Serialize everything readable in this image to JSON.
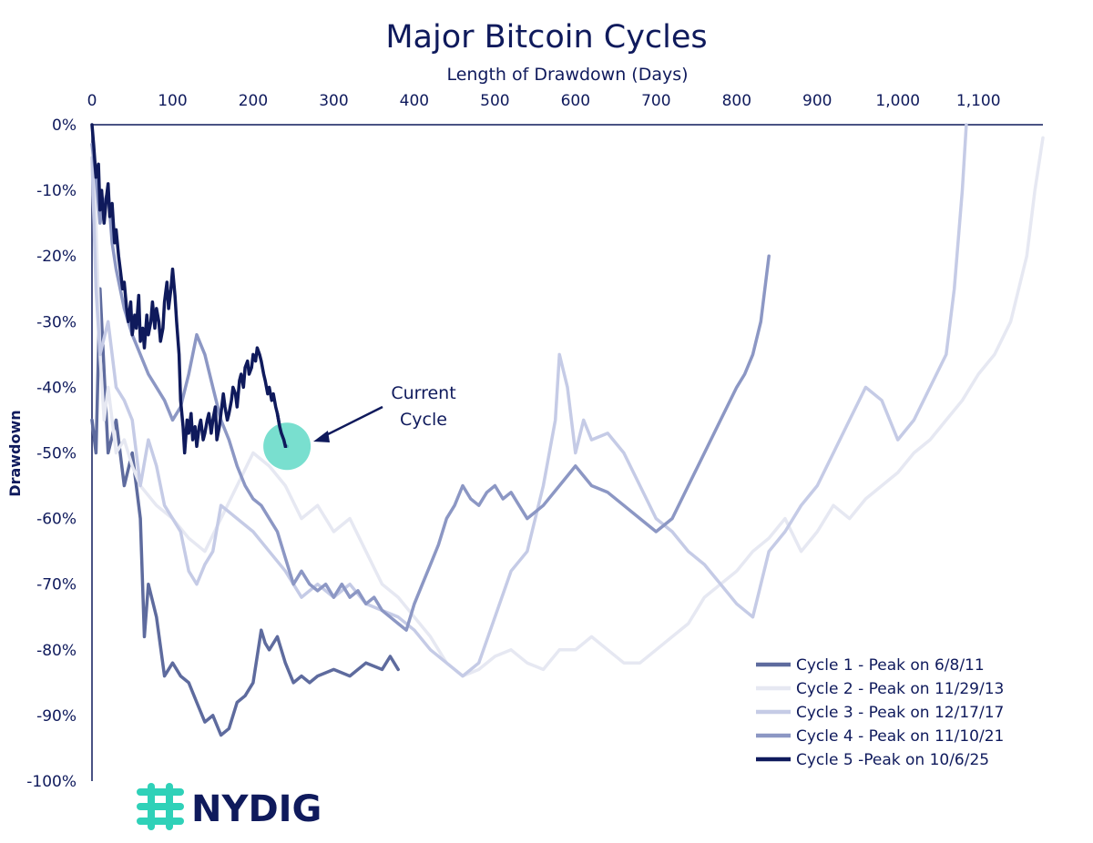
{
  "chart_data": {
    "type": "line",
    "title": "Major Bitcoin Cycles",
    "xlabel": "Length of Drawdown (Days)",
    "ylabel": "Drawdown",
    "x_axis_position": "top",
    "xlim": [
      0,
      1180
    ],
    "ylim": [
      -100,
      0
    ],
    "x_ticks": [
      "0",
      "100",
      "200",
      "300",
      "400",
      "500",
      "600",
      "700",
      "800",
      "900",
      "1,000",
      "1,100"
    ],
    "y_ticks": [
      "0%",
      "-10%",
      "-20%",
      "-30%",
      "-40%",
      "-50%",
      "-60%",
      "-70%",
      "-80%",
      "-90%",
      "-100%"
    ],
    "grid": false,
    "legend_position": "bottom-right",
    "series": [
      {
        "name": "Cycle 1 - Peak on 6/8/11",
        "color": "#5e6b9e",
        "x": [
          0,
          5,
          10,
          20,
          30,
          40,
          50,
          60,
          65,
          70,
          80,
          90,
          100,
          110,
          120,
          130,
          140,
          150,
          160,
          170,
          180,
          190,
          200,
          210,
          215,
          220,
          230,
          240,
          250,
          260,
          270,
          280,
          300,
          320,
          340,
          360,
          370,
          380
        ],
        "y": [
          -45,
          -50,
          -25,
          -50,
          -45,
          -55,
          -50,
          -60,
          -78,
          -70,
          -75,
          -84,
          -82,
          -84,
          -85,
          -88,
          -91,
          -90,
          -93,
          -92,
          -88,
          -87,
          -85,
          -77,
          -79,
          -80,
          -78,
          -82,
          -85,
          -84,
          -85,
          -84,
          -83,
          -84,
          -82,
          -83,
          -81,
          -83
        ]
      },
      {
        "name": "Cycle 2 - Peak on 11/29/13",
        "color": "#e6e8f2",
        "x": [
          0,
          5,
          10,
          15,
          20,
          30,
          40,
          50,
          60,
          80,
          100,
          120,
          140,
          160,
          180,
          200,
          220,
          240,
          260,
          280,
          300,
          320,
          340,
          360,
          380,
          400,
          420,
          440,
          460,
          480,
          500,
          520,
          540,
          560,
          580,
          600,
          620,
          640,
          660,
          680,
          700,
          720,
          740,
          760,
          780,
          800,
          820,
          840,
          860,
          880,
          900,
          920,
          940,
          960,
          980,
          1000,
          1020,
          1040,
          1060,
          1080,
          1100,
          1120,
          1140,
          1160,
          1170,
          1180
        ],
        "y": [
          -3,
          -15,
          -35,
          -45,
          -40,
          -50,
          -48,
          -52,
          -55,
          -58,
          -60,
          -63,
          -65,
          -60,
          -55,
          -50,
          -52,
          -55,
          -60,
          -58,
          -62,
          -60,
          -65,
          -70,
          -72,
          -75,
          -78,
          -82,
          -84,
          -83,
          -81,
          -80,
          -82,
          -83,
          -80,
          -80,
          -78,
          -80,
          -82,
          -82,
          -80,
          -78,
          -76,
          -72,
          -70,
          -68,
          -65,
          -63,
          -60,
          -65,
          -62,
          -58,
          -60,
          -57,
          -55,
          -53,
          -50,
          -48,
          -45,
          -42,
          -38,
          -35,
          -30,
          -20,
          -10,
          -2
        ]
      },
      {
        "name": "Cycle 3 - Peak on 12/17/17",
        "color": "#c5cbe6",
        "x": [
          0,
          5,
          10,
          20,
          30,
          40,
          50,
          60,
          70,
          80,
          90,
          100,
          110,
          120,
          130,
          140,
          150,
          160,
          180,
          200,
          220,
          240,
          260,
          280,
          300,
          320,
          340,
          360,
          380,
          400,
          420,
          440,
          460,
          480,
          500,
          520,
          540,
          560,
          575,
          580,
          590,
          600,
          610,
          620,
          640,
          660,
          680,
          700,
          720,
          740,
          760,
          780,
          800,
          820,
          840,
          860,
          880,
          900,
          920,
          940,
          960,
          980,
          1000,
          1020,
          1040,
          1060,
          1070,
          1080,
          1085
        ],
        "y": [
          -5,
          -25,
          -35,
          -30,
          -40,
          -42,
          -45,
          -55,
          -48,
          -52,
          -58,
          -60,
          -62,
          -68,
          -70,
          -67,
          -65,
          -58,
          -60,
          -62,
          -65,
          -68,
          -72,
          -70,
          -72,
          -70,
          -73,
          -74,
          -75,
          -77,
          -80,
          -82,
          -84,
          -82,
          -75,
          -68,
          -65,
          -55,
          -45,
          -35,
          -40,
          -50,
          -45,
          -48,
          -47,
          -50,
          -55,
          -60,
          -62,
          -65,
          -67,
          -70,
          -73,
          -75,
          -65,
          -62,
          -58,
          -55,
          -50,
          -45,
          -40,
          -42,
          -48,
          -45,
          -40,
          -35,
          -25,
          -10,
          0
        ]
      },
      {
        "name": "Cycle 4 - Peak on 11/10/21",
        "color": "#8c97c4",
        "x": [
          0,
          5,
          10,
          15,
          20,
          25,
          30,
          40,
          50,
          60,
          70,
          80,
          90,
          100,
          110,
          120,
          130,
          140,
          150,
          160,
          170,
          180,
          190,
          200,
          210,
          220,
          230,
          240,
          250,
          260,
          270,
          280,
          290,
          300,
          310,
          320,
          330,
          340,
          350,
          360,
          370,
          380,
          390,
          400,
          410,
          420,
          430,
          440,
          450,
          460,
          470,
          480,
          490,
          500,
          510,
          520,
          530,
          540,
          560,
          580,
          600,
          620,
          640,
          660,
          680,
          700,
          720,
          740,
          760,
          780,
          800,
          810,
          820,
          830,
          840
        ],
        "y": [
          -3,
          -8,
          -15,
          -12,
          -10,
          -18,
          -22,
          -28,
          -32,
          -35,
          -38,
          -40,
          -42,
          -45,
          -43,
          -38,
          -32,
          -35,
          -40,
          -45,
          -48,
          -52,
          -55,
          -57,
          -58,
          -60,
          -62,
          -66,
          -70,
          -68,
          -70,
          -71,
          -70,
          -72,
          -70,
          -72,
          -71,
          -73,
          -72,
          -74,
          -75,
          -76,
          -77,
          -73,
          -70,
          -67,
          -64,
          -60,
          -58,
          -55,
          -57,
          -58,
          -56,
          -55,
          -57,
          -56,
          -58,
          -60,
          -58,
          -55,
          -52,
          -55,
          -56,
          -58,
          -60,
          -62,
          -60,
          -55,
          -50,
          -45,
          -40,
          -38,
          -35,
          -30,
          -20
        ]
      },
      {
        "name": "Cycle 5 -Peak on 10/6/25",
        "color": "#0f1a5c",
        "x": [
          0,
          2,
          5,
          8,
          10,
          12,
          15,
          18,
          20,
          22,
          25,
          28,
          30,
          33,
          35,
          38,
          40,
          43,
          45,
          48,
          50,
          53,
          55,
          58,
          60,
          63,
          65,
          68,
          70,
          73,
          75,
          78,
          80,
          83,
          85,
          88,
          90,
          93,
          95,
          98,
          100,
          103,
          105,
          108,
          110,
          113,
          115,
          118,
          120,
          123,
          125,
          128,
          130,
          133,
          135,
          138,
          140,
          143,
          145,
          148,
          150,
          153,
          155,
          158,
          160,
          163,
          165,
          168,
          170,
          173,
          175,
          178,
          180,
          183,
          185,
          188,
          190,
          193,
          195,
          198,
          200,
          203,
          205,
          208,
          210,
          213,
          215,
          218,
          220,
          223,
          225,
          228,
          230,
          233,
          235,
          238,
          240,
          242
        ],
        "y": [
          0,
          -3,
          -8,
          -6,
          -13,
          -10,
          -15,
          -11,
          -9,
          -14,
          -12,
          -18,
          -16,
          -20,
          -22,
          -25,
          -24,
          -28,
          -30,
          -27,
          -32,
          -29,
          -31,
          -26,
          -33,
          -31,
          -34,
          -29,
          -32,
          -30,
          -27,
          -31,
          -28,
          -30,
          -33,
          -31,
          -27,
          -24,
          -28,
          -25,
          -22,
          -26,
          -30,
          -35,
          -42,
          -46,
          -50,
          -45,
          -47,
          -44,
          -48,
          -46,
          -49,
          -46,
          -45,
          -48,
          -47,
          -45,
          -44,
          -47,
          -45,
          -43,
          -48,
          -46,
          -44,
          -41,
          -43,
          -45,
          -44,
          -42,
          -40,
          -41,
          -43,
          -39,
          -38,
          -40,
          -37,
          -36,
          -38,
          -37,
          -35,
          -36,
          -34,
          -35,
          -36,
          -38,
          -39,
          -41,
          -40,
          -42,
          -41,
          -43,
          -44,
          -46,
          -47,
          -48,
          -49,
          -49
        ]
      }
    ],
    "annotations": {
      "callout_lines": [
        "Current",
        "Cycle"
      ],
      "highlight_point": {
        "x": 242,
        "y": -49
      },
      "highlight_color": "#62d9c7"
    }
  },
  "branding": {
    "logo_text": "NYDIG",
    "logo_mark": "nydig-logo-icon",
    "logo_color": "#2fd1b8"
  }
}
